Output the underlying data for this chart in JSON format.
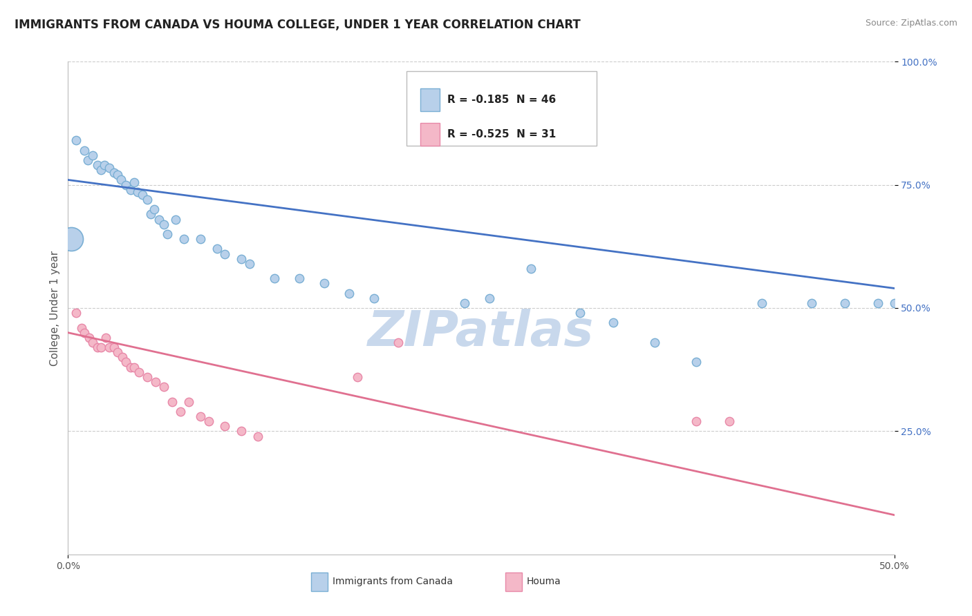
{
  "title": "IMMIGRANTS FROM CANADA VS HOUMA COLLEGE, UNDER 1 YEAR CORRELATION CHART",
  "source": "Source: ZipAtlas.com",
  "ylabel": "College, Under 1 year",
  "legend_labels": [
    "Immigrants from Canada",
    "Houma"
  ],
  "legend_R": [
    -0.185,
    -0.525
  ],
  "legend_N": [
    46,
    31
  ],
  "xlim": [
    0.0,
    0.5
  ],
  "ylim": [
    0.0,
    1.0
  ],
  "blue_color": "#b8d0ea",
  "blue_edge": "#7aafd4",
  "blue_line": "#4472c4",
  "pink_color": "#f4b8c8",
  "pink_edge": "#e888a8",
  "pink_line": "#e07090",
  "background": "#ffffff",
  "grid_color": "#cccccc",
  "watermark_color": "#c8d8ec",
  "blue_scatter_x": [
    0.005,
    0.01,
    0.012,
    0.015,
    0.018,
    0.02,
    0.022,
    0.025,
    0.028,
    0.03,
    0.032,
    0.035,
    0.038,
    0.04,
    0.042,
    0.045,
    0.048,
    0.05,
    0.052,
    0.055,
    0.058,
    0.06,
    0.065,
    0.07,
    0.08,
    0.09,
    0.095,
    0.105,
    0.11,
    0.125,
    0.14,
    0.155,
    0.17,
    0.185,
    0.24,
    0.255,
    0.28,
    0.31,
    0.33,
    0.355,
    0.38,
    0.42,
    0.45,
    0.47,
    0.49,
    0.5
  ],
  "blue_scatter_y": [
    0.84,
    0.82,
    0.8,
    0.81,
    0.79,
    0.78,
    0.79,
    0.785,
    0.775,
    0.77,
    0.76,
    0.75,
    0.74,
    0.755,
    0.735,
    0.73,
    0.72,
    0.69,
    0.7,
    0.68,
    0.67,
    0.65,
    0.68,
    0.64,
    0.64,
    0.62,
    0.61,
    0.6,
    0.59,
    0.56,
    0.56,
    0.55,
    0.53,
    0.52,
    0.51,
    0.52,
    0.58,
    0.49,
    0.47,
    0.43,
    0.39,
    0.51,
    0.51,
    0.51,
    0.51,
    0.51
  ],
  "pink_scatter_x": [
    0.005,
    0.008,
    0.01,
    0.013,
    0.015,
    0.018,
    0.02,
    0.023,
    0.025,
    0.028,
    0.03,
    0.033,
    0.035,
    0.038,
    0.04,
    0.043,
    0.048,
    0.053,
    0.058,
    0.063,
    0.068,
    0.073,
    0.08,
    0.085,
    0.095,
    0.105,
    0.115,
    0.175,
    0.2,
    0.38,
    0.4
  ],
  "pink_scatter_y": [
    0.49,
    0.46,
    0.45,
    0.44,
    0.43,
    0.42,
    0.42,
    0.44,
    0.42,
    0.42,
    0.41,
    0.4,
    0.39,
    0.38,
    0.38,
    0.37,
    0.36,
    0.35,
    0.34,
    0.31,
    0.29,
    0.31,
    0.28,
    0.27,
    0.26,
    0.25,
    0.24,
    0.36,
    0.43,
    0.27,
    0.27
  ],
  "blue_trend_x": [
    0.0,
    0.5
  ],
  "blue_trend_y": [
    0.76,
    0.54
  ],
  "pink_trend_x": [
    0.0,
    0.5
  ],
  "pink_trend_y": [
    0.45,
    0.08
  ]
}
